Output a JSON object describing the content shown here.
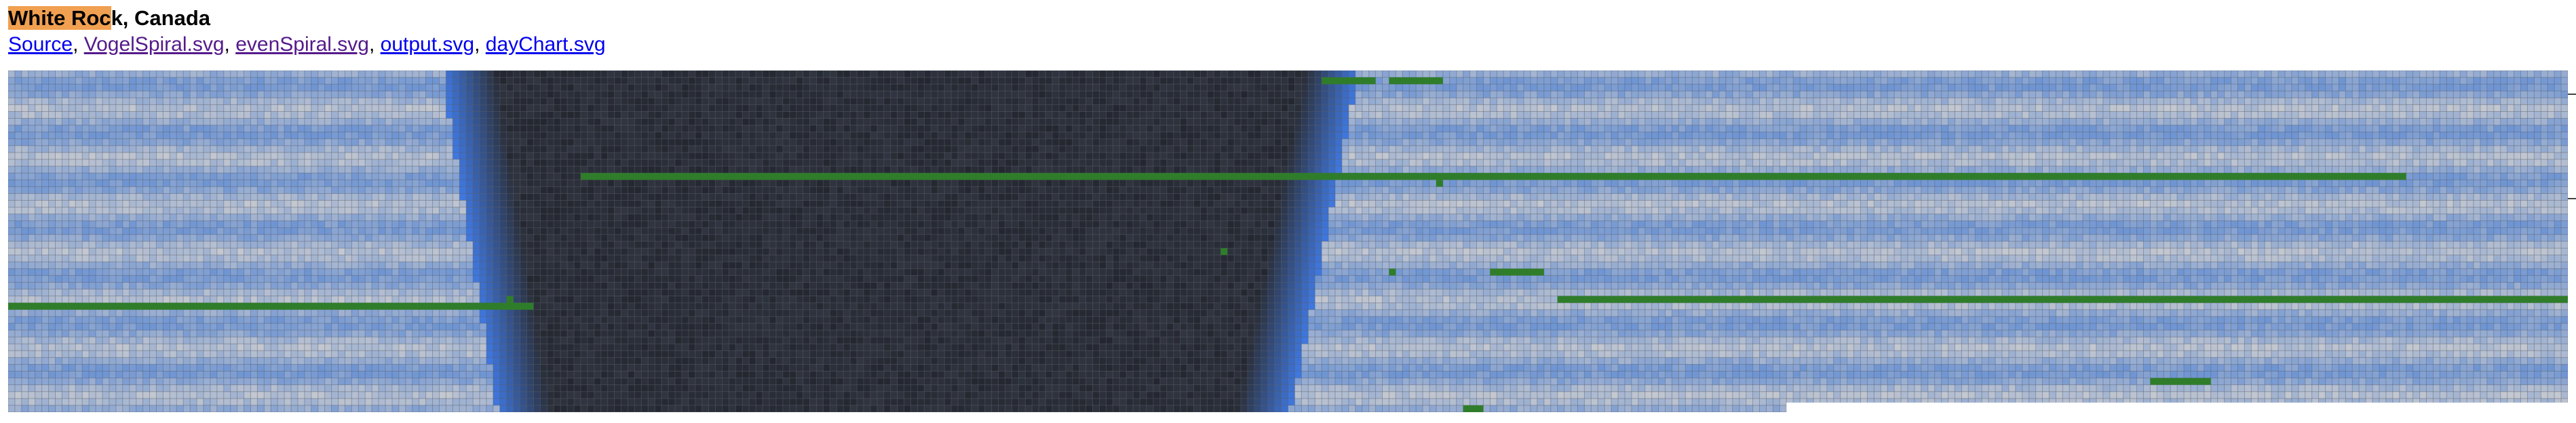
{
  "header": {
    "title_highlight": "White Roc",
    "title_rest": "k, Canada"
  },
  "links": [
    {
      "label": "Source",
      "visited": false
    },
    {
      "label": "VogelSpiral.svg",
      "visited": true
    },
    {
      "label": "evenSpiral.svg",
      "visited": true
    },
    {
      "label": "output.svg",
      "visited": false
    },
    {
      "label": "dayChart.svg",
      "visited": false
    }
  ],
  "colors": {
    "sky_blue": "#6f95d3",
    "cloud_grey": "#c4c8d0",
    "night_dark": "#2a2e38",
    "twilight_blue": "#3f78e0",
    "marker_green": "#2f7d2a",
    "grid_line": "#5a5f6a"
  },
  "chart_data": {
    "type": "heatmap",
    "description_rows": 50,
    "columns": 380,
    "night_band": {
      "top_start_col": 68,
      "top_end_col": 196,
      "bottom_start_col": 76,
      "bottom_end_col": 186
    },
    "markers": [
      {
        "row": 1,
        "col_start": 195,
        "col_end": 203
      },
      {
        "row": 1,
        "col_start": 205,
        "col_end": 213
      },
      {
        "row": 15,
        "col_start": 85,
        "col_end": 356
      },
      {
        "row": 16,
        "col_start": 212,
        "col_end": 213
      },
      {
        "row": 26,
        "col_start": 180,
        "col_end": 181
      },
      {
        "row": 29,
        "col_start": 205,
        "col_end": 206
      },
      {
        "row": 29,
        "col_start": 220,
        "col_end": 228
      },
      {
        "row": 33,
        "col_start": 230,
        "col_end": 380
      },
      {
        "row": 33,
        "col_start": 74,
        "col_end": 75
      },
      {
        "row": 34,
        "col_start": 0,
        "col_end": 78
      },
      {
        "row": 45,
        "col_start": 318,
        "col_end": 327
      },
      {
        "row": 49,
        "col_start": 216,
        "col_end": 219
      }
    ],
    "blank_region": {
      "row_start": 48,
      "col_start": 264
    }
  }
}
